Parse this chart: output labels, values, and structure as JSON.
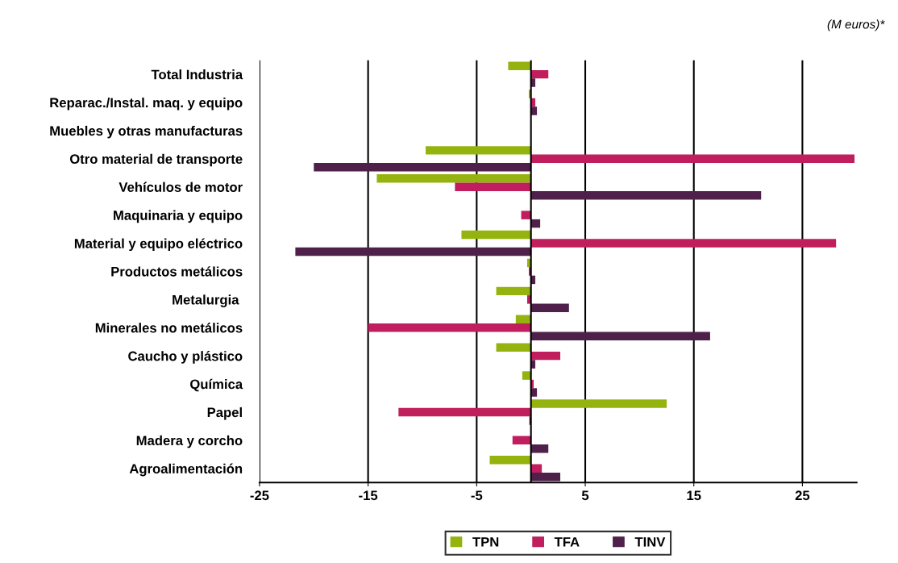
{
  "chart_data": {
    "type": "bar",
    "orientation": "horizontal",
    "categories": [
      "Total Industria",
      "Reparac./Instal. maq. y equipo",
      "Muebles y otras manufacturas",
      "Otro material de transporte",
      "Vehículos de motor",
      "Maquinaria y equipo",
      "Material y equipo eléctrico",
      "Productos metálicos",
      "Metalurgia ",
      "Minerales no metálicos",
      "Caucho y plástico",
      "Química",
      "Papel",
      "Madera y corcho",
      "Agroalimentación"
    ],
    "series": [
      {
        "name": "TPN",
        "color": "#95b30e",
        "values": [
          -2.1,
          -0.2,
          0,
          -9.7,
          -14.2,
          0,
          -6.4,
          -0.35,
          -3.2,
          -1.4,
          -3.2,
          -0.8,
          12.5,
          null,
          -3.8
        ]
      },
      {
        "name": "TFA",
        "color": "#c01e5c",
        "values": [
          1.6,
          0.4,
          0,
          29.8,
          -7.0,
          -0.9,
          28.1,
          -0.2,
          -0.35,
          -15.0,
          2.7,
          0.25,
          -12.2,
          -1.7,
          1.0
        ]
      },
      {
        "name": "TINV",
        "color": "#4f214a",
        "values": [
          0.4,
          0.55,
          0,
          -20.0,
          21.2,
          0.85,
          -21.7,
          0.4,
          3.5,
          16.5,
          0.4,
          0.55,
          -0.15,
          1.6,
          2.7
        ]
      }
    ],
    "xlim": [
      -25,
      30
    ],
    "xticks": [
      -25,
      -15,
      -5,
      5,
      15,
      25
    ],
    "grid": "x",
    "legend": "bottom",
    "ref_lines": [
      {
        "axis": "x",
        "value": 0,
        "color": "#000000"
      }
    ],
    "annotations": [
      "(M euros)*"
    ]
  }
}
